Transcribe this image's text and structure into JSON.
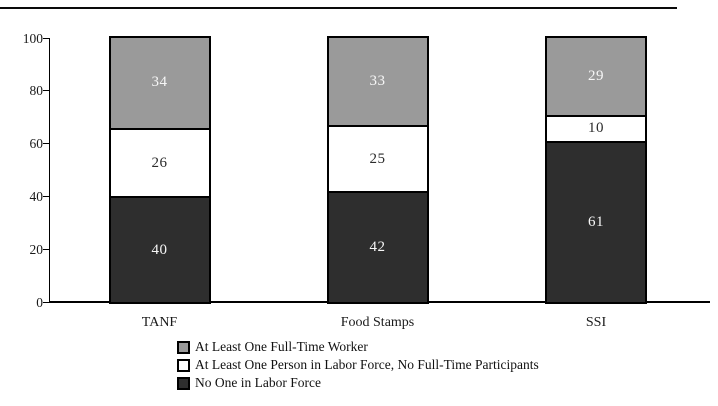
{
  "chart_data": {
    "type": "bar",
    "stacked": true,
    "title": "",
    "xlabel": "",
    "ylabel": "",
    "categories": [
      "TANF",
      "Food Stamps",
      "SSI"
    ],
    "series": [
      {
        "name": "No One in Labor Force",
        "swatch": "dark",
        "values": [
          40,
          42,
          61
        ]
      },
      {
        "name": "At Least One Person in Labor Force, No Full-Time Participants",
        "swatch": "white",
        "values": [
          26,
          25,
          10
        ]
      },
      {
        "name": "At Least One Full-Time Worker",
        "swatch": "gray",
        "values": [
          34,
          33,
          29
        ]
      }
    ],
    "yticks": [
      0,
      20,
      40,
      60,
      80,
      100
    ],
    "ylim": [
      0,
      100
    ],
    "grid": false,
    "legend_position": "bottom",
    "legend": [
      {
        "label": "At Least One Full-Time Worker",
        "swatch": "gray"
      },
      {
        "label": "At Least One Person in Labor Force, No Full-Time Participants",
        "swatch": "white"
      },
      {
        "label": "No One in Labor Force",
        "swatch": "dark"
      }
    ],
    "colors": {
      "gray": "#9a9a9a",
      "white": "#ffffff",
      "dark": "#2e2e2e",
      "axis": "#000000",
      "label_on_gray": "#f7f7f7",
      "label_on_white": "#2b2b2b",
      "label_on_dark": "#f7f7f7"
    }
  }
}
